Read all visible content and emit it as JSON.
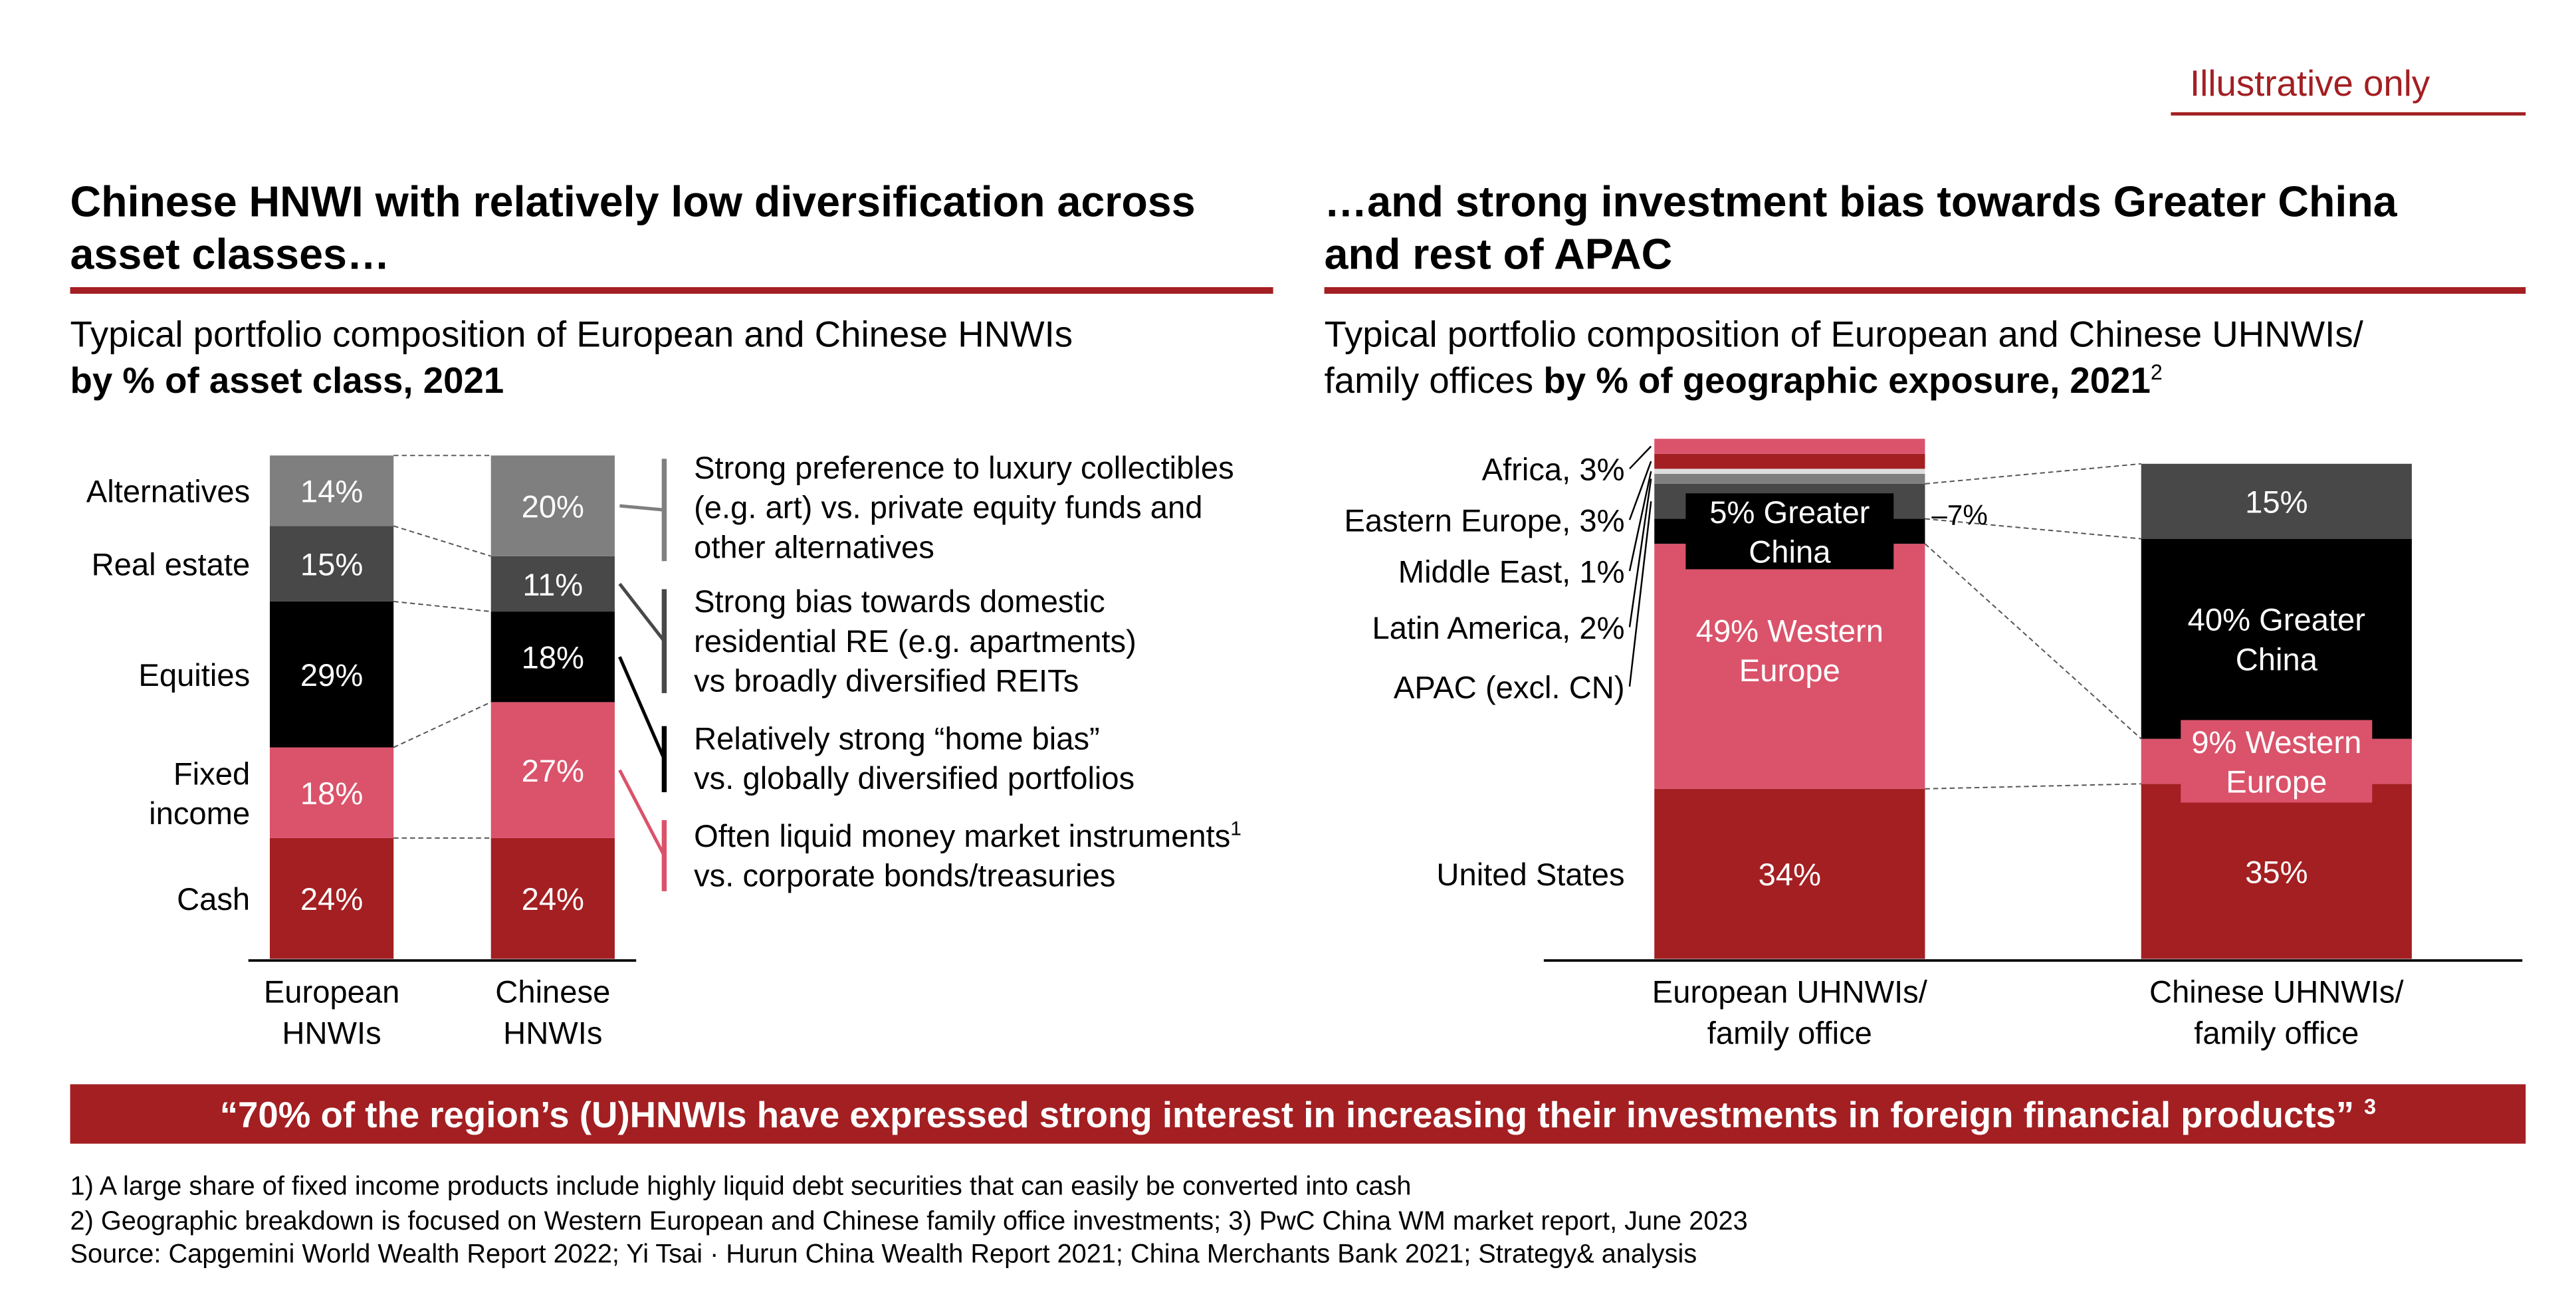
{
  "header": {
    "tag": "Illustrative only"
  },
  "colors": {
    "dark_red": "#A31F22",
    "pink": "#DA536B",
    "black": "#000000",
    "dark_gray": "#484848",
    "gray": "#7F7F7F",
    "light_gray": "#DDDDDD"
  },
  "left": {
    "title": [
      "Chinese HNWI with relatively low diversification across",
      "asset classes…"
    ],
    "subtitle": [
      "Typical portfolio composition of European and Chinese HNWIs",
      "by % of asset class, 2021"
    ],
    "annotations": [
      {
        "lines": [
          "Strong preference to luxury collectibles",
          "(e.g. art) vs. private equity funds and",
          "other alternatives"
        ],
        "color": "#7F7F7F"
      },
      {
        "lines": [
          "Strong bias towards domestic",
          "residential RE (e.g. apartments)",
          "vs broadly diversified REITs"
        ],
        "color": "#484848"
      },
      {
        "lines": [
          "Relatively strong “home bias”",
          "vs. globally diversified portfolios"
        ],
        "color": "#000000"
      },
      {
        "lines": [
          "Often liquid money market instruments",
          "vs. corporate bonds/treasuries"
        ],
        "sup": "1",
        "color": "#DA536B"
      }
    ]
  },
  "right": {
    "title": [
      "…and strong investment bias towards Greater China",
      "and rest of APAC"
    ],
    "subtitle": [
      "Typical portfolio composition of European and Chinese UHNWIs/",
      "family offices ",
      "by % of geographic exposure, 2021",
      "2"
    ],
    "side_note": "–7%"
  },
  "chart_data": [
    {
      "type": "bar",
      "stacked": true,
      "categories": [
        [
          "European",
          "HNWIs"
        ],
        [
          "Chinese",
          "HNWIs"
        ]
      ],
      "series": [
        {
          "name": "Cash",
          "label_lines": [
            "Cash"
          ],
          "values": [
            24,
            24
          ],
          "color": "#A31F22",
          "labels": [
            "24%",
            "24%"
          ]
        },
        {
          "name": "Fixed income",
          "label_lines": [
            "Fixed",
            "income"
          ],
          "values": [
            18,
            27
          ],
          "color": "#DA536B",
          "labels": [
            "18%",
            "27%"
          ]
        },
        {
          "name": "Equities",
          "label_lines": [
            "Equities"
          ],
          "values": [
            29,
            18
          ],
          "color": "#000000",
          "labels": [
            "29%",
            "18%"
          ]
        },
        {
          "name": "Real estate",
          "label_lines": [
            "Real estate"
          ],
          "values": [
            15,
            11
          ],
          "color": "#484848",
          "labels": [
            "15%",
            "11%"
          ]
        },
        {
          "name": "Alternatives",
          "label_lines": [
            "Alternatives"
          ],
          "values": [
            14,
            20
          ],
          "color": "#7F7F7F",
          "labels": [
            "14%",
            "20%"
          ]
        }
      ],
      "ylim": [
        0,
        100
      ]
    },
    {
      "type": "bar",
      "stacked": true,
      "categories": [
        [
          "European UHNWIs/",
          "family office"
        ],
        [
          "Chinese UHNWIs/",
          "family office"
        ]
      ],
      "series": [
        {
          "name": "United States",
          "values": [
            34,
            35
          ],
          "color": "#A31F22",
          "labels": [
            "34%",
            "35%"
          ]
        },
        {
          "name": "Western Europe",
          "values": [
            49,
            9
          ],
          "color": "#DA536B",
          "labels": [
            [
              "49% Western",
              "Europe"
            ],
            [
              "9% Western",
              "Europe"
            ]
          ]
        },
        {
          "name": "Greater China",
          "values": [
            5,
            40
          ],
          "color": "#000000",
          "labels": [
            [
              "5% Greater",
              "China"
            ],
            [
              "40% Greater",
              "China"
            ]
          ]
        },
        {
          "name": "APAC (excl. CN)",
          "values": [
            7,
            15
          ],
          "color": "#484848",
          "labels": [
            "",
            "15%"
          ]
        },
        {
          "name": "Latin America, 2%",
          "values": [
            2,
            0
          ],
          "color": "#7F7F7F"
        },
        {
          "name": "Middle East, 1%",
          "values": [
            1,
            0
          ],
          "color": "#DDDDDD"
        },
        {
          "name": "Eastern Europe, 3%",
          "values": [
            3,
            0
          ],
          "color": "#A31F22"
        },
        {
          "name": "Africa, 3%",
          "values": [
            3,
            0
          ],
          "color": "#DA536B"
        }
      ],
      "ylim": [
        0,
        100
      ]
    }
  ],
  "banner": {
    "text": "“70% of the region’s (U)HNWIs have expressed strong interest in increasing their investments in foreign financial products”",
    "sup": "3"
  },
  "footnotes": [
    "1) A large share of fixed income products include highly liquid debt securities that can easily be converted into cash",
    "2) Geographic breakdown is focused on Western European and Chinese family office investments;  3) PwC China WM market report, June 2023",
    "Source: Capgemini World Wealth Report 2022; Yi Tsai · Hurun China Wealth Report 2021; China Merchants Bank 2021; Strategy& analysis"
  ]
}
